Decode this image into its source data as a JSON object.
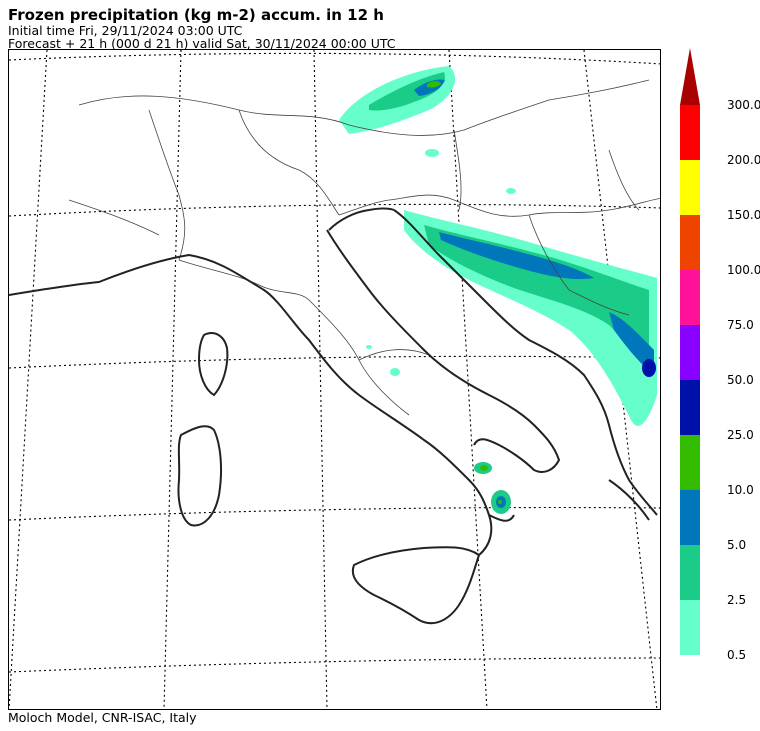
{
  "header": {
    "title": "Frozen precipitation (kg m-2) accum. in 12 h",
    "initial_time": "Initial time  Fri, 29/11/2024  03:00 UTC",
    "forecast": "Forecast  +  21 h  (000 d 21 h)  valid Sat, 30/11/2024 00:00 UTC"
  },
  "footer": {
    "credit": "Moloch Model, CNR-ISAC, Italy"
  },
  "legend": {
    "levels": [
      {
        "label": "0.5",
        "color": "#66ffcc"
      },
      {
        "label": "2.5",
        "color": "#1acc88"
      },
      {
        "label": "5.0",
        "color": "#0077bb"
      },
      {
        "label": "10.0",
        "color": "#33bb00"
      },
      {
        "label": "25.0",
        "color": "#0011aa"
      },
      {
        "label": "50.0",
        "color": "#8800ff"
      },
      {
        "label": "75.0",
        "color": "#ff1199"
      },
      {
        "label": "100.0",
        "color": "#ee4400"
      },
      {
        "label": "150.0",
        "color": "#ffff00"
      },
      {
        "label": "200.0",
        "color": "#ff0000"
      },
      {
        "label": "300.0",
        "color": "#aa0000"
      }
    ]
  }
}
